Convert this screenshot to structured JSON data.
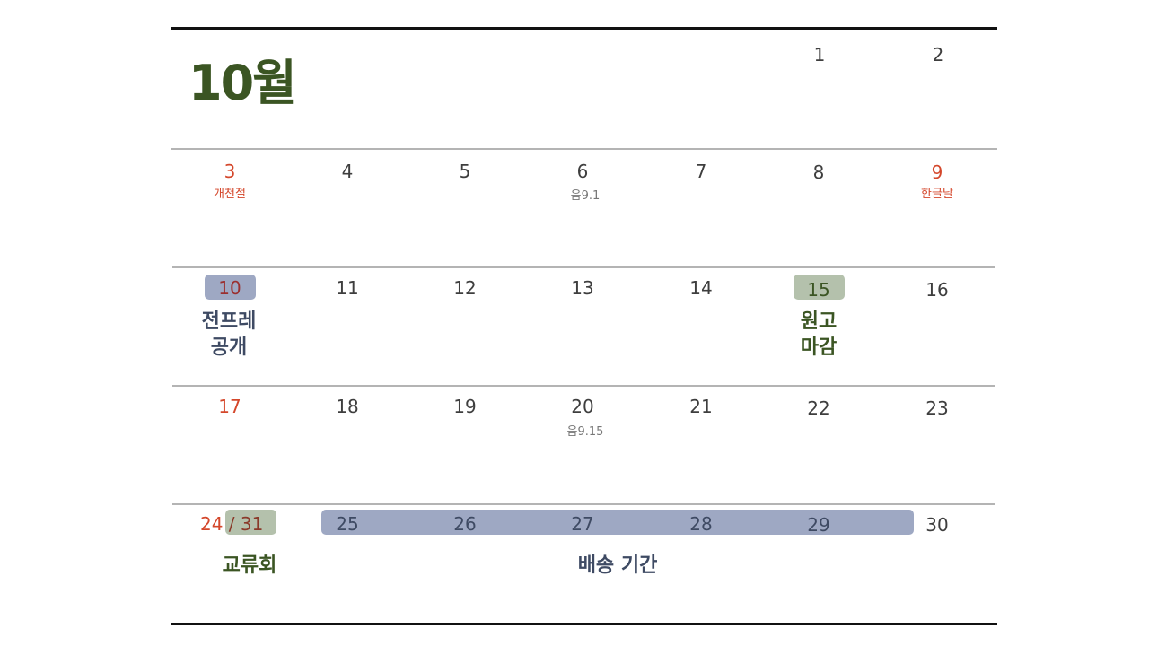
{
  "month_title": "10월",
  "days": {
    "d1": "1",
    "d2": "2",
    "d3": "3",
    "d4": "4",
    "d5": "5",
    "d6": "6",
    "d7": "7",
    "d8": "8",
    "d9": "9",
    "d10": "10",
    "d11": "11",
    "d12": "12",
    "d13": "13",
    "d14": "14",
    "d15": "15",
    "d16": "16",
    "d17": "17",
    "d18": "18",
    "d19": "19",
    "d20": "20",
    "d21": "21",
    "d22": "22",
    "d23": "23",
    "d24": "24",
    "sep": " / ",
    "d31": "31",
    "d25": "25",
    "d26": "26",
    "d27": "27",
    "d28": "28",
    "d29": "29",
    "d30": "30"
  },
  "notes": {
    "d3": "개천절",
    "d6": "음9.1",
    "d9": "한글날",
    "d20": "음9.15"
  },
  "events": {
    "d10_line1": "전프레",
    "d10_line2": "공개",
    "d15_line1": "원고",
    "d15_line2": "마감",
    "d24": "교류회",
    "shipping": "배송 기간"
  },
  "colors": {
    "title": "#3b5523",
    "holiday": "#d4472b",
    "highlight_blue": "#9ea8c3",
    "highlight_green": "#b4c1ac",
    "event_slate": "#3e4a63"
  }
}
